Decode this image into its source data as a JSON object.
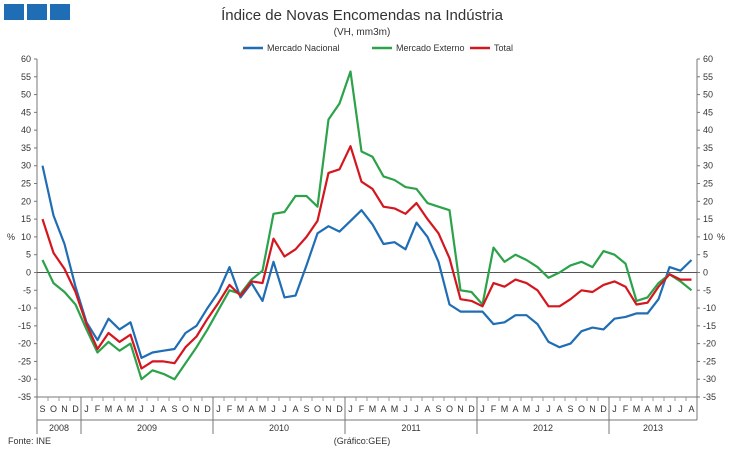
{
  "chart_data": {
    "type": "line",
    "title": "Índice de Novas Encomendas na Indústria",
    "subtitle": "(VH, mm3m)",
    "ylabel_left": "%",
    "ylabel_right": "%",
    "ylim": [
      -35,
      60
    ],
    "ytick_step": 5,
    "source": "Fonte: INE",
    "credit": "(Gráfico:GEE)",
    "month_labels": [
      "S",
      "O",
      "N",
      "D",
      "J",
      "F",
      "M",
      "A",
      "M",
      "J",
      "J",
      "A",
      "S",
      "O",
      "N",
      "D",
      "J",
      "F",
      "M",
      "A",
      "M",
      "J",
      "J",
      "A",
      "S",
      "O",
      "N",
      "D",
      "J",
      "F",
      "M",
      "A",
      "M",
      "J",
      "J",
      "A",
      "S",
      "O",
      "N",
      "D",
      "J",
      "F",
      "M",
      "A",
      "M",
      "J",
      "J",
      "A",
      "S",
      "O",
      "N",
      "D",
      "J",
      "F",
      "M",
      "A",
      "M",
      "J",
      "J",
      "A"
    ],
    "years": [
      {
        "label": "2008",
        "start": 0,
        "count": 4
      },
      {
        "label": "2009",
        "start": 4,
        "count": 12
      },
      {
        "label": "2010",
        "start": 16,
        "count": 12
      },
      {
        "label": "2011",
        "start": 28,
        "count": 12
      },
      {
        "label": "2012",
        "start": 40,
        "count": 12
      },
      {
        "label": "2013",
        "start": 52,
        "count": 8
      }
    ],
    "series": [
      {
        "name": "Mercado Nacional",
        "color": "#1f6db5",
        "values": [
          30,
          16,
          8,
          -4,
          -14,
          -19,
          -13,
          -16,
          -14,
          -24,
          -22.5,
          -22,
          -21.5,
          -17,
          -15,
          -10,
          -5.5,
          1.5,
          -7,
          -3,
          -8,
          3,
          -7,
          -6.5,
          2,
          11,
          13,
          11.5,
          14.5,
          17.5,
          13.5,
          8,
          8.5,
          6.5,
          14,
          10,
          3,
          -9,
          -11,
          -11,
          -11,
          -14.5,
          -14,
          -12,
          -12,
          -14.5,
          -19.5,
          -21,
          -20,
          -16.5,
          -15.5,
          -16,
          -13,
          -12.5,
          -11.5,
          -11.5,
          -7.5,
          1.5,
          0.5,
          3.5
        ]
      },
      {
        "name": "Mercado Externo",
        "color": "#2ca24a",
        "values": [
          3.5,
          -3,
          -5.5,
          -9,
          -16,
          -22.5,
          -19.5,
          -22,
          -20,
          -30,
          -27.5,
          -28.5,
          -30,
          -25.5,
          -21,
          -16,
          -10.5,
          -5,
          -6,
          -2,
          0.5,
          16.5,
          17,
          21.5,
          21.5,
          18.5,
          43,
          47.5,
          56.5,
          34,
          32.5,
          27,
          26,
          24,
          23.5,
          19.5,
          18.5,
          17.5,
          -5,
          -5.5,
          -9,
          7,
          3,
          5,
          3.5,
          1.5,
          -1.5,
          0,
          2,
          3,
          1.5,
          6,
          5,
          2.5,
          -8,
          -7,
          -3,
          -0.5,
          -2.5,
          -5
        ]
      },
      {
        "name": "Total",
        "color": "#d4161f",
        "values": [
          15,
          5.5,
          1,
          -5.5,
          -14.5,
          -21.5,
          -17,
          -19.5,
          -17.5,
          -27,
          -25,
          -25,
          -25.5,
          -21,
          -18,
          -13,
          -8.5,
          -3.5,
          -6.5,
          -2.5,
          -3,
          9.5,
          4.5,
          6.5,
          10,
          14.5,
          28,
          29,
          35.5,
          25.5,
          23.5,
          18.5,
          18,
          16.5,
          19.5,
          15,
          11,
          4,
          -7.5,
          -8,
          -9.5,
          -3,
          -4,
          -2,
          -3,
          -5,
          -9.5,
          -9.5,
          -7.5,
          -5,
          -5.5,
          -3.5,
          -2.5,
          -4,
          -9,
          -8.5,
          -4,
          -0.5,
          -2,
          -2
        ]
      }
    ]
  }
}
